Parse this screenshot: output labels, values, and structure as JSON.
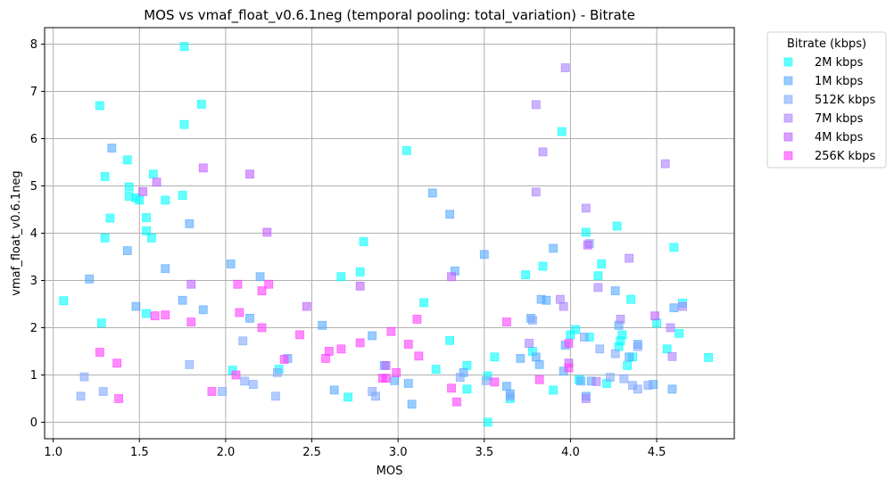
{
  "chart_data": {
    "type": "scatter",
    "title": "MOS vs vmaf_float_v0.6.1neg (temporal pooling: total_variation) - Bitrate",
    "xlabel": "MOS",
    "ylabel": "vmaf_float_v0.6.1neg",
    "xlim": [
      0.95,
      4.95
    ],
    "ylim": [
      -0.35,
      8.35
    ],
    "xticks": [
      1.0,
      1.5,
      2.0,
      2.5,
      3.0,
      3.5,
      4.0,
      4.5
    ],
    "xtick_labels": [
      "1.0",
      "1.5",
      "2.0",
      "2.5",
      "3.0",
      "3.5",
      "4.0",
      "4.5"
    ],
    "yticks": [
      0,
      1,
      2,
      3,
      4,
      5,
      6,
      7,
      8
    ],
    "ytick_labels": [
      "0",
      "1",
      "2",
      "3",
      "4",
      "5",
      "6",
      "7",
      "8"
    ],
    "grid": true,
    "legend": {
      "title": "Bitrate (kbps)",
      "placement": "outside-right-top"
    },
    "marker": "square",
    "series": [
      {
        "name": "2M kbps",
        "color": "#00ffff",
        "points": [
          [
            1.06,
            2.57
          ],
          [
            1.27,
            6.7
          ],
          [
            1.28,
            2.1
          ],
          [
            1.3,
            3.9
          ],
          [
            1.3,
            5.2
          ],
          [
            1.33,
            4.32
          ],
          [
            1.43,
            5.55
          ],
          [
            1.44,
            4.98
          ],
          [
            1.44,
            4.78
          ],
          [
            1.48,
            4.75
          ],
          [
            1.5,
            4.7
          ],
          [
            1.54,
            4.33
          ],
          [
            1.54,
            4.05
          ],
          [
            1.54,
            2.3
          ],
          [
            1.57,
            3.9
          ],
          [
            1.58,
            5.25
          ],
          [
            1.65,
            4.7
          ],
          [
            1.75,
            4.8
          ],
          [
            1.76,
            6.3
          ],
          [
            1.76,
            7.95
          ],
          [
            1.86,
            6.73
          ],
          [
            2.04,
            1.1
          ],
          [
            2.31,
            1.12
          ],
          [
            2.67,
            3.08
          ],
          [
            2.71,
            0.53
          ],
          [
            2.78,
            3.18
          ],
          [
            2.8,
            3.82
          ],
          [
            3.05,
            5.75
          ],
          [
            3.15,
            2.53
          ],
          [
            3.22,
            1.12
          ],
          [
            3.3,
            1.73
          ],
          [
            3.4,
            1.2
          ],
          [
            3.4,
            0.7
          ],
          [
            3.52,
            0.98
          ],
          [
            3.52,
            0.0
          ],
          [
            3.56,
            1.38
          ],
          [
            3.65,
            0.5
          ],
          [
            3.74,
            3.12
          ],
          [
            3.78,
            1.5
          ],
          [
            3.84,
            3.3
          ],
          [
            3.9,
            0.68
          ],
          [
            3.95,
            6.15
          ],
          [
            4.0,
            1.85
          ],
          [
            4.03,
            1.96
          ],
          [
            4.05,
            0.9
          ],
          [
            4.09,
            4.02
          ],
          [
            4.11,
            1.8
          ],
          [
            4.16,
            3.1
          ],
          [
            4.18,
            3.35
          ],
          [
            4.21,
            0.82
          ],
          [
            4.27,
            4.15
          ],
          [
            4.28,
            1.6
          ],
          [
            4.29,
            1.72
          ],
          [
            4.3,
            1.85
          ],
          [
            4.33,
            1.2
          ],
          [
            4.35,
            2.6
          ],
          [
            4.36,
            1.38
          ],
          [
            4.5,
            2.1
          ],
          [
            4.56,
            1.55
          ],
          [
            4.6,
            3.7
          ],
          [
            4.63,
            1.88
          ],
          [
            4.65,
            2.52
          ],
          [
            4.8,
            1.37
          ]
        ]
      },
      {
        "name": "1M kbps",
        "color": "#55aaff",
        "points": [
          [
            1.21,
            3.03
          ],
          [
            1.34,
            5.8
          ],
          [
            1.43,
            3.63
          ],
          [
            1.48,
            2.45
          ],
          [
            1.65,
            3.25
          ],
          [
            1.75,
            2.58
          ],
          [
            1.79,
            4.2
          ],
          [
            1.87,
            2.38
          ],
          [
            2.03,
            3.35
          ],
          [
            2.14,
            2.2
          ],
          [
            2.2,
            3.08
          ],
          [
            2.36,
            1.35
          ],
          [
            2.56,
            2.05
          ],
          [
            2.63,
            0.68
          ],
          [
            2.85,
            1.83
          ],
          [
            2.92,
            1.2
          ],
          [
            2.98,
            0.88
          ],
          [
            3.06,
            0.82
          ],
          [
            3.08,
            0.38
          ],
          [
            3.2,
            4.85
          ],
          [
            3.3,
            4.4
          ],
          [
            3.33,
            3.2
          ],
          [
            3.38,
            1.05
          ],
          [
            3.5,
            3.55
          ],
          [
            3.63,
            0.76
          ],
          [
            3.65,
            0.6
          ],
          [
            3.71,
            1.35
          ],
          [
            3.77,
            2.2
          ],
          [
            3.8,
            1.38
          ],
          [
            3.82,
            1.22
          ],
          [
            3.83,
            2.6
          ],
          [
            3.86,
            2.58
          ],
          [
            3.9,
            3.68
          ],
          [
            3.96,
            1.08
          ],
          [
            3.97,
            1.63
          ],
          [
            4.06,
            0.87
          ],
          [
            4.09,
            0.55
          ],
          [
            4.12,
            0.87
          ],
          [
            4.26,
            2.78
          ],
          [
            4.28,
            2.05
          ],
          [
            4.34,
            1.38
          ],
          [
            4.39,
            1.65
          ],
          [
            4.48,
            0.8
          ],
          [
            4.59,
            0.7
          ],
          [
            4.6,
            2.42
          ]
        ]
      },
      {
        "name": "512K kbps",
        "color": "#80a8ff",
        "points": [
          [
            1.16,
            0.55
          ],
          [
            1.18,
            0.96
          ],
          [
            1.29,
            0.65
          ],
          [
            1.79,
            1.22
          ],
          [
            1.98,
            0.65
          ],
          [
            2.1,
            1.72
          ],
          [
            2.11,
            0.87
          ],
          [
            2.16,
            0.8
          ],
          [
            2.29,
            0.55
          ],
          [
            2.3,
            1.05
          ],
          [
            2.87,
            0.55
          ],
          [
            2.85,
            0.65
          ],
          [
            3.36,
            0.95
          ],
          [
            3.51,
            0.88
          ],
          [
            3.65,
            0.55
          ],
          [
            3.78,
            2.16
          ],
          [
            4.08,
            1.8
          ],
          [
            4.11,
            3.78
          ],
          [
            4.17,
            1.55
          ],
          [
            4.23,
            0.95
          ],
          [
            4.26,
            1.45
          ],
          [
            4.31,
            0.92
          ],
          [
            4.36,
            0.78
          ],
          [
            4.39,
            0.7
          ],
          [
            4.39,
            1.6
          ],
          [
            4.45,
            0.78
          ]
        ]
      },
      {
        "name": "7M kbps",
        "color": "#aa80ff",
        "points": [
          [
            3.76,
            1.67
          ],
          [
            3.8,
            6.72
          ],
          [
            3.8,
            4.87
          ],
          [
            3.84,
            5.72
          ],
          [
            3.94,
            2.6
          ],
          [
            3.96,
            2.45
          ],
          [
            3.97,
            7.5
          ],
          [
            4.09,
            4.53
          ],
          [
            4.09,
            0.5
          ],
          [
            4.15,
            0.86
          ],
          [
            4.16,
            2.85
          ],
          [
            4.29,
            2.18
          ],
          [
            4.34,
            3.47
          ],
          [
            4.55,
            5.47
          ],
          [
            4.58,
            2.0
          ],
          [
            4.59,
            1.39
          ],
          [
            4.65,
            2.45
          ]
        ]
      },
      {
        "name": "4M kbps",
        "color": "#c060ff",
        "points": [
          [
            1.52,
            4.88
          ],
          [
            1.6,
            5.08
          ],
          [
            1.8,
            2.92
          ],
          [
            1.87,
            5.38
          ],
          [
            2.14,
            5.25
          ],
          [
            2.24,
            4.02
          ],
          [
            2.47,
            2.45
          ],
          [
            2.78,
            2.88
          ],
          [
            2.93,
            1.2
          ],
          [
            3.31,
            3.08
          ],
          [
            3.99,
            1.25
          ],
          [
            4.1,
            3.75
          ],
          [
            4.49,
            2.25
          ]
        ]
      },
      {
        "name": "256K kbps",
        "color": "#ff40ff",
        "points": [
          [
            1.27,
            1.48
          ],
          [
            1.37,
            1.25
          ],
          [
            1.38,
            0.5
          ],
          [
            1.59,
            2.25
          ],
          [
            1.65,
            2.27
          ],
          [
            1.8,
            2.12
          ],
          [
            1.92,
            0.65
          ],
          [
            2.06,
            1.0
          ],
          [
            2.07,
            2.92
          ],
          [
            2.08,
            2.32
          ],
          [
            2.21,
            2.78
          ],
          [
            2.21,
            2.0
          ],
          [
            2.25,
            2.92
          ],
          [
            2.34,
            1.33
          ],
          [
            2.43,
            1.85
          ],
          [
            2.58,
            1.35
          ],
          [
            2.6,
            1.5
          ],
          [
            2.67,
            1.55
          ],
          [
            2.78,
            1.68
          ],
          [
            2.91,
            0.93
          ],
          [
            2.93,
            0.93
          ],
          [
            2.96,
            1.92
          ],
          [
            2.99,
            1.05
          ],
          [
            3.06,
            1.65
          ],
          [
            3.11,
            2.18
          ],
          [
            3.12,
            1.4
          ],
          [
            3.31,
            0.72
          ],
          [
            3.34,
            0.43
          ],
          [
            3.56,
            0.85
          ],
          [
            3.63,
            2.12
          ],
          [
            3.82,
            0.9
          ],
          [
            3.99,
            1.15
          ],
          [
            3.99,
            1.67
          ]
        ]
      }
    ]
  }
}
